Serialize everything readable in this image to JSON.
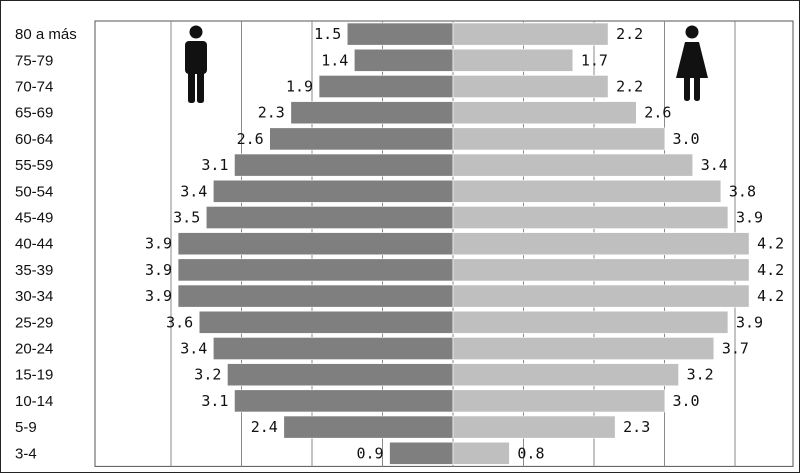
{
  "chart_data": {
    "type": "bar",
    "orientation": "horizontal-population-pyramid",
    "categories": [
      "80 a más",
      "75-79",
      "70-74",
      "65-69",
      "60-64",
      "55-59",
      "50-54",
      "45-49",
      "40-44",
      "35-39",
      "30-34",
      "25-29",
      "20-24",
      "15-19",
      "10-14",
      "5-9",
      "3-4"
    ],
    "series": [
      {
        "icon": "male-person-icon",
        "color": "#7f7f7f",
        "values": [
          1.5,
          1.4,
          1.9,
          2.3,
          2.6,
          3.1,
          3.4,
          3.5,
          3.9,
          3.9,
          3.9,
          3.6,
          3.4,
          3.2,
          3.1,
          2.4,
          0.9
        ]
      },
      {
        "icon": "female-person-icon",
        "color": "#bfbfbf",
        "values": [
          2.2,
          1.7,
          2.2,
          2.6,
          3.0,
          3.4,
          3.8,
          3.9,
          4.2,
          4.2,
          4.2,
          3.9,
          3.7,
          3.2,
          3.0,
          2.3,
          0.8
        ]
      }
    ],
    "labels": {
      "left": [
        "1.5",
        "1.4",
        "1.9",
        "2.3",
        "2.6",
        "3.1",
        "3.4",
        "3.5",
        "3.9",
        "3.9",
        "3.9",
        "3.6",
        "3.4",
        "3.2",
        "3.1",
        "2.4",
        "0.9"
      ],
      "right": [
        "2.2",
        "1.7",
        "2.2",
        "2.6",
        "3.0",
        "3.4",
        "3.8",
        "3.9",
        "4.2",
        "4.2",
        "4.2",
        "3.9",
        "3.7",
        "3.2",
        "3.0",
        "2.3",
        "0.8"
      ]
    },
    "xlim": [
      -4.5,
      4.5
    ],
    "grid": true,
    "title": "",
    "xlabel": "",
    "ylabel": ""
  }
}
